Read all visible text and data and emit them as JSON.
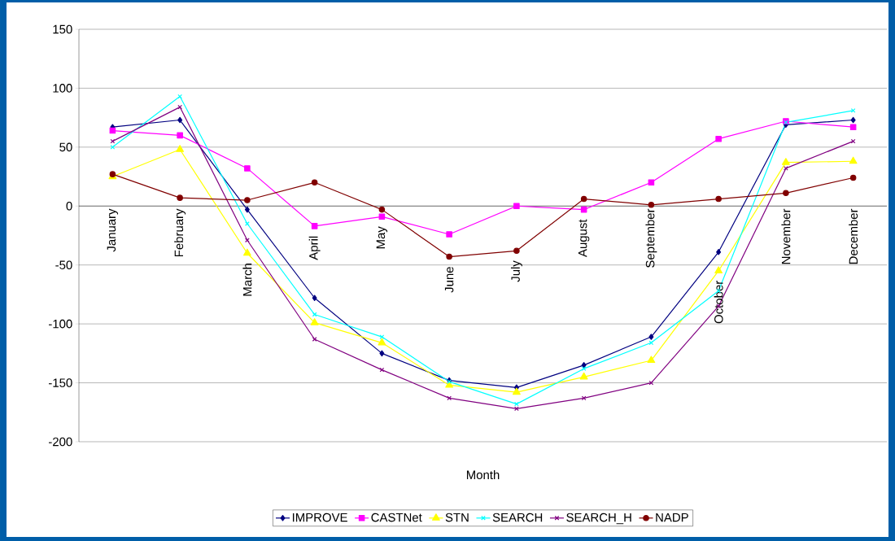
{
  "chart_data": {
    "type": "line",
    "xlabel": "Month",
    "categories": [
      "January",
      "February",
      "March",
      "April",
      "May",
      "June",
      "July",
      "August",
      "September",
      "October",
      "November",
      "December"
    ],
    "series": [
      {
        "name": "IMPROVE",
        "color": "#000080",
        "marker": "diamond",
        "values": [
          67,
          73,
          -3,
          -78,
          -125,
          -148,
          -154,
          -135,
          -111,
          -39,
          69,
          73
        ]
      },
      {
        "name": "CASTNet",
        "color": "#ff00ff",
        "marker": "square",
        "values": [
          64,
          60,
          32,
          -17,
          -9,
          -24,
          0,
          -3,
          20,
          57,
          72,
          67
        ]
      },
      {
        "name": "STN",
        "color": "#ffff00",
        "marker": "triangle",
        "values": [
          25,
          48,
          -40,
          -99,
          -116,
          -152,
          -158,
          -145,
          -131,
          -55,
          37,
          38
        ]
      },
      {
        "name": "SEARCH",
        "color": "#00ffff",
        "marker": "cross",
        "values": [
          50,
          93,
          -15,
          -92,
          -111,
          -149,
          -168,
          -138,
          -116,
          -72,
          71,
          81
        ]
      },
      {
        "name": "SEARCH_H",
        "color": "#800080",
        "marker": "cross",
        "values": [
          55,
          84,
          -29,
          -113,
          -139,
          -163,
          -172,
          -163,
          -150,
          -85,
          32,
          55
        ]
      },
      {
        "name": "NADP",
        "color": "#800000",
        "marker": "circle",
        "values": [
          27,
          7,
          5,
          20,
          -3,
          -43,
          -38,
          6,
          1,
          6,
          11,
          24
        ]
      }
    ],
    "ylim": [
      -200,
      150
    ],
    "yticks": [
      -200,
      -150,
      -100,
      -50,
      0,
      50,
      100,
      150
    ],
    "grid": "y",
    "legend": "bottom"
  }
}
